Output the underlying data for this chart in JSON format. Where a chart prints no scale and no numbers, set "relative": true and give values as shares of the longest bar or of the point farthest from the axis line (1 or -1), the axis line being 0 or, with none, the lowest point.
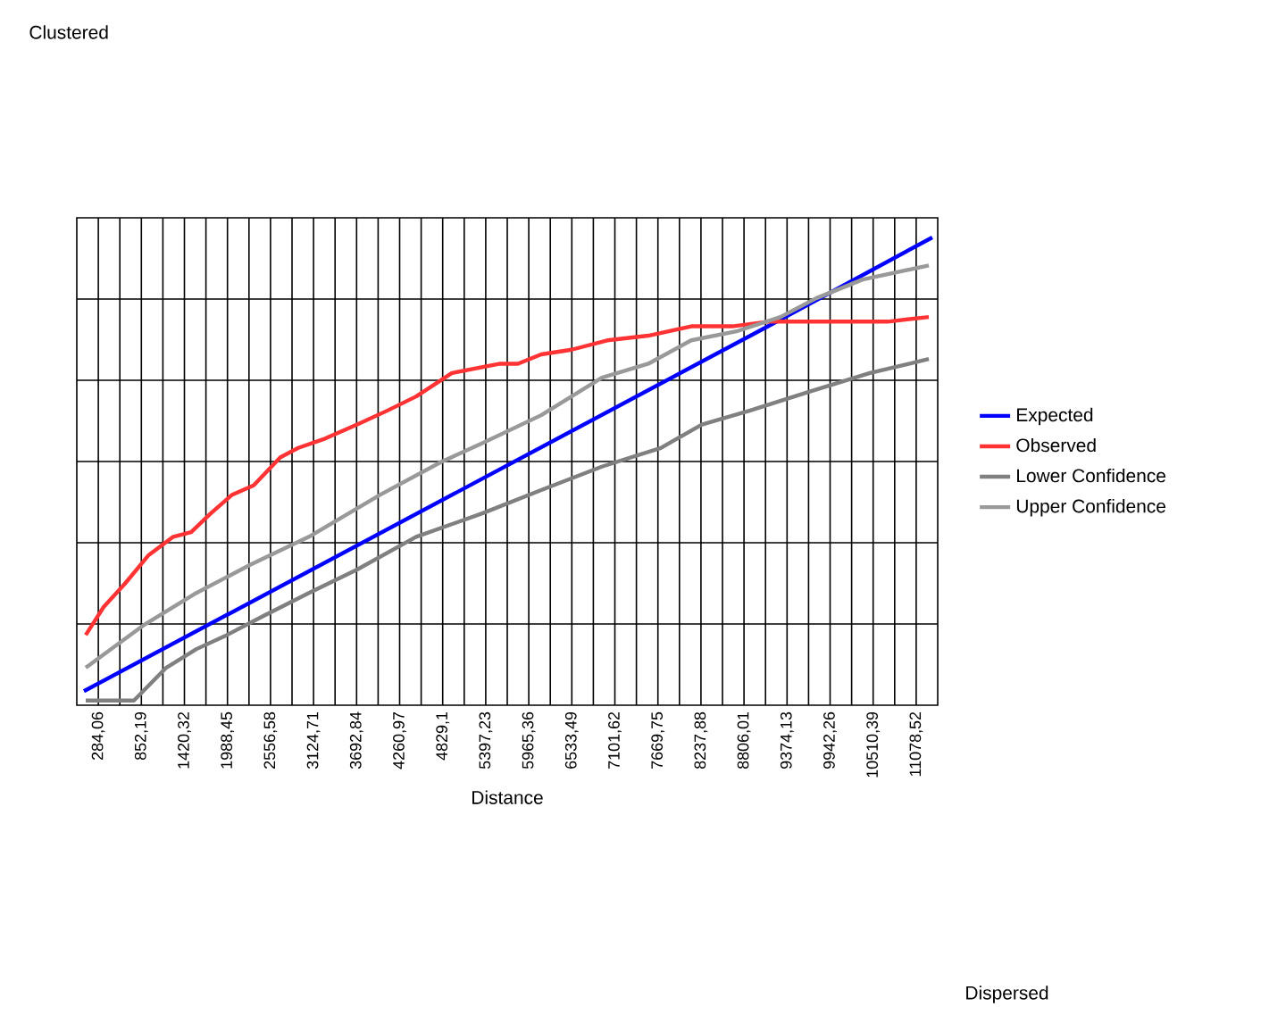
{
  "chart_data": {
    "type": "line",
    "relative": true,
    "xlabel": "Distance",
    "annotations": [
      "Clustered",
      "Dispersed"
    ],
    "xlim": [
      0,
      11362.6
    ],
    "xticks": [
      {
        "value": 284.06,
        "label": "284,06"
      },
      {
        "value": 568.13,
        "label": null
      },
      {
        "value": 852.19,
        "label": "852,19"
      },
      {
        "value": 1136.26,
        "label": null
      },
      {
        "value": 1420.32,
        "label": "1420,32"
      },
      {
        "value": 1704.39,
        "label": null
      },
      {
        "value": 1988.45,
        "label": "1988,45"
      },
      {
        "value": 2272.52,
        "label": null
      },
      {
        "value": 2556.58,
        "label": "2556,58"
      },
      {
        "value": 2840.65,
        "label": null
      },
      {
        "value": 3124.71,
        "label": "3124,71"
      },
      {
        "value": 3408.78,
        "label": null
      },
      {
        "value": 3692.84,
        "label": "3692,84"
      },
      {
        "value": 3976.91,
        "label": null
      },
      {
        "value": 4260.97,
        "label": "4260,97"
      },
      {
        "value": 4545.04,
        "label": null
      },
      {
        "value": 4829.1,
        "label": "4829,1"
      },
      {
        "value": 5113.17,
        "label": null
      },
      {
        "value": 5397.23,
        "label": "5397,23"
      },
      {
        "value": 5681.3,
        "label": null
      },
      {
        "value": 5965.36,
        "label": "5965,36"
      },
      {
        "value": 6249.43,
        "label": null
      },
      {
        "value": 6533.49,
        "label": "6533,49"
      },
      {
        "value": 6817.56,
        "label": null
      },
      {
        "value": 7101.62,
        "label": "7101,62"
      },
      {
        "value": 7385.69,
        "label": null
      },
      {
        "value": 7669.75,
        "label": "7669,75"
      },
      {
        "value": 7953.82,
        "label": null
      },
      {
        "value": 8237.88,
        "label": "8237,88"
      },
      {
        "value": 8521.95,
        "label": null
      },
      {
        "value": 8806.01,
        "label": "8806,01"
      },
      {
        "value": 9090.08,
        "label": null
      },
      {
        "value": 9374.13,
        "label": "9374,13"
      },
      {
        "value": 9658.21,
        "label": null
      },
      {
        "value": 9942.26,
        "label": "9942,26"
      },
      {
        "value": 10226.34,
        "label": null
      },
      {
        "value": 10510.39,
        "label": "10510,39"
      },
      {
        "value": 10794.47,
        "label": null
      },
      {
        "value": 11078.52,
        "label": "11078,52"
      }
    ],
    "grid": true,
    "legend": "right",
    "marker": "none",
    "series": [
      {
        "name": "Expected",
        "color": "#0000ff",
        "x": [
          94,
          9123,
          11291
        ],
        "values": [
          0.03,
          0.81,
          1.0
        ]
      },
      {
        "name": "Observed",
        "color": "#ff3333",
        "x": [
          118,
          354,
          636,
          943,
          1273,
          1509,
          1768,
          2051,
          2334,
          2687,
          2923,
          3277,
          3701,
          4102,
          4479,
          4951,
          5587,
          5823,
          6129,
          6530,
          7001,
          7543,
          8109,
          8651,
          9123,
          9594,
          10066,
          10702,
          11245
        ],
        "values": [
          0.15,
          0.21,
          0.26,
          0.32,
          0.36,
          0.37,
          0.41,
          0.45,
          0.47,
          0.53,
          0.55,
          0.57,
          0.6,
          0.63,
          0.66,
          0.71,
          0.73,
          0.73,
          0.75,
          0.76,
          0.78,
          0.79,
          0.81,
          0.81,
          0.82,
          0.82,
          0.82,
          0.82,
          0.83
        ]
      },
      {
        "name": "Lower Confidence",
        "color": "#808080",
        "x": [
          118,
          754,
          1179,
          1579,
          1980,
          2452,
          3064,
          3701,
          4479,
          5351,
          6129,
          6930,
          7708,
          8250,
          8887,
          9665,
          10467,
          11245
        ],
        "values": [
          0.01,
          0.01,
          0.08,
          0.12,
          0.15,
          0.19,
          0.24,
          0.29,
          0.36,
          0.41,
          0.46,
          0.51,
          0.55,
          0.6,
          0.63,
          0.67,
          0.71,
          0.74
        ]
      },
      {
        "name": "Upper Confidence",
        "color": "#999999",
        "x": [
          118,
          872,
          1579,
          2287,
          3064,
          4007,
          4809,
          5351,
          6129,
          6930,
          7543,
          8109,
          8722,
          9288,
          9759,
          10372,
          11245
        ],
        "values": [
          0.08,
          0.17,
          0.24,
          0.3,
          0.36,
          0.45,
          0.52,
          0.56,
          0.62,
          0.7,
          0.73,
          0.78,
          0.8,
          0.83,
          0.87,
          0.91,
          0.94
        ]
      }
    ]
  }
}
